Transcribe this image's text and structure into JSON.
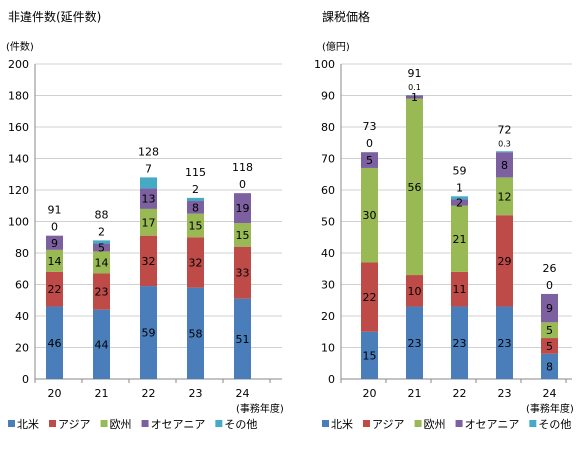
{
  "colors": {
    "north_america": "#4a7ebb",
    "asia": "#be4b48",
    "europe": "#98b954",
    "oceania": "#7d60a0",
    "other": "#46aac5",
    "grid": "#d0d0d0",
    "axis": "#8a8a8a",
    "text": "#000000"
  },
  "chart_data": [
    {
      "type": "bar",
      "stacked": true,
      "title": "非違件数(延件数)",
      "unit_label": "(件数)",
      "x_unit_label": "(事務年度)",
      "ylim": [
        0,
        200
      ],
      "y_ticks": [
        0,
        20,
        40,
        60,
        80,
        100,
        120,
        140,
        160,
        180,
        200
      ],
      "grid": true,
      "legend_position": "bottom",
      "categories": [
        "20",
        "21",
        "22",
        "23",
        "24"
      ],
      "series": [
        {
          "name": "北米",
          "color_key": "north_america",
          "values": [
            46,
            44,
            59,
            58,
            51
          ],
          "labels": [
            "46",
            "44",
            "59",
            "58",
            "51"
          ]
        },
        {
          "name": "アジア",
          "color_key": "asia",
          "values": [
            22,
            23,
            32,
            32,
            33
          ],
          "labels": [
            "22",
            "23",
            "32",
            "32",
            "33"
          ]
        },
        {
          "name": "欧州",
          "color_key": "europe",
          "values": [
            14,
            14,
            17,
            15,
            15
          ],
          "labels": [
            "14",
            "14",
            "17",
            "15",
            "15"
          ]
        },
        {
          "name": "オセアニア",
          "color_key": "oceania",
          "values": [
            9,
            5,
            13,
            8,
            19
          ],
          "labels": [
            "9",
            "5",
            "13",
            "8",
            "19"
          ]
        },
        {
          "name": "その他",
          "color_key": "other",
          "values": [
            0,
            2,
            7,
            2,
            0
          ],
          "labels": [
            "0",
            "2",
            "7",
            "2",
            "0"
          ]
        }
      ],
      "totals": [
        "91",
        "88",
        "128",
        "115",
        "118"
      ]
    },
    {
      "type": "bar",
      "stacked": true,
      "title": "課税価格",
      "unit_label": "(億円)",
      "x_unit_label": "(事務年度)",
      "ylim": [
        0,
        100
      ],
      "y_ticks": [
        0,
        10,
        20,
        30,
        40,
        50,
        60,
        70,
        80,
        90,
        100
      ],
      "grid": true,
      "legend_position": "bottom",
      "categories": [
        "20",
        "21",
        "22",
        "23",
        "24"
      ],
      "series": [
        {
          "name": "北米",
          "color_key": "north_america",
          "values": [
            15,
            23,
            23,
            23,
            8
          ],
          "labels": [
            "15",
            "23",
            "23",
            "23",
            "8"
          ]
        },
        {
          "name": "アジア",
          "color_key": "asia",
          "values": [
            22,
            10,
            11,
            29,
            5
          ],
          "labels": [
            "22",
            "10",
            "11",
            "29",
            "5"
          ]
        },
        {
          "name": "欧州",
          "color_key": "europe",
          "values": [
            30,
            56,
            21,
            12,
            5
          ],
          "labels": [
            "30",
            "56",
            "21",
            "12",
            "5"
          ]
        },
        {
          "name": "オセアニア",
          "color_key": "oceania",
          "values": [
            5,
            1,
            2,
            8,
            9
          ],
          "labels": [
            "5",
            "1",
            "2",
            "8",
            "9"
          ]
        },
        {
          "name": "その他",
          "color_key": "other",
          "values": [
            0,
            0.1,
            1,
            0.3,
            0
          ],
          "labels": [
            "0",
            "0.1",
            "1",
            "0.3",
            "0"
          ]
        }
      ],
      "totals": [
        "73",
        "91",
        "59",
        "72",
        "26"
      ]
    }
  ]
}
